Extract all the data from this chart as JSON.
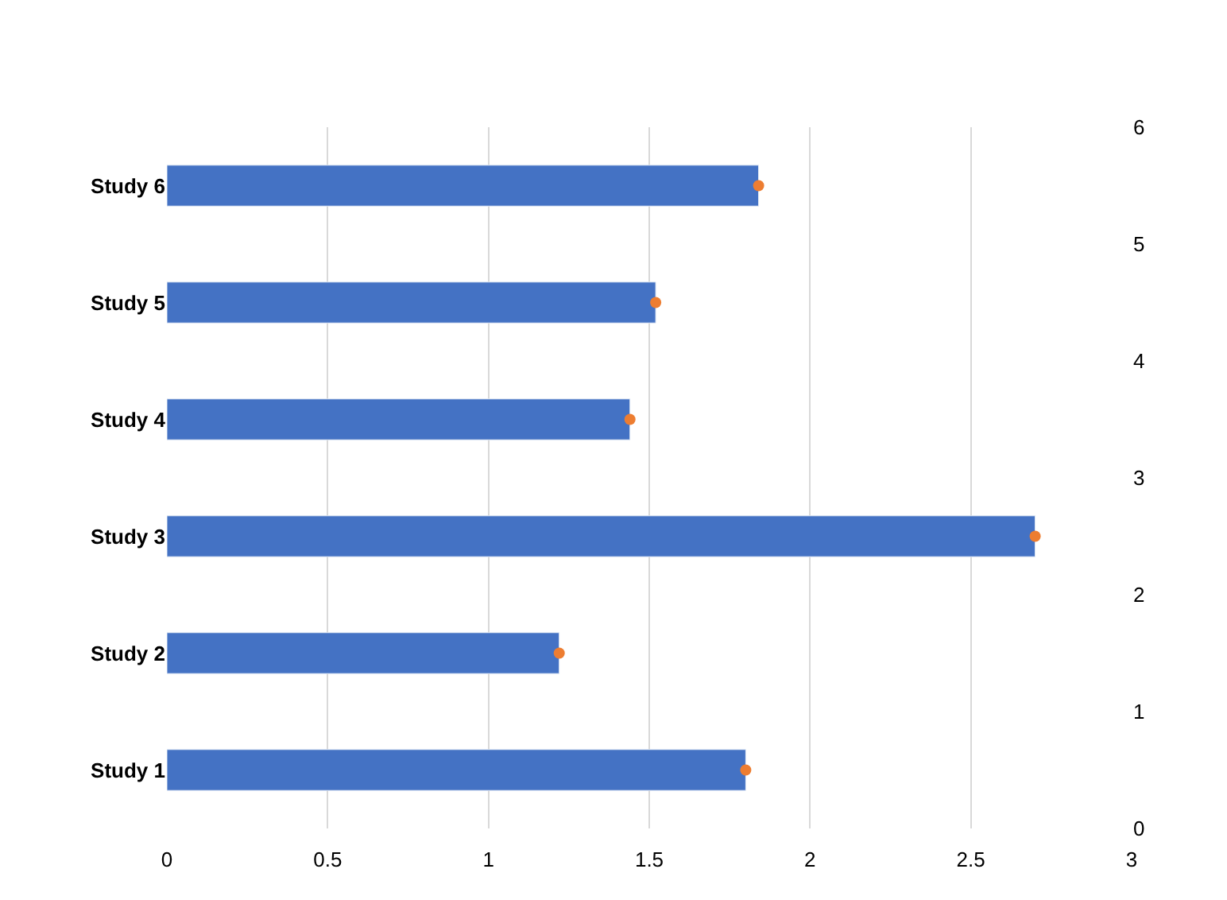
{
  "chart_data": {
    "type": "bar",
    "orientation": "horizontal",
    "categories": [
      "Study 6",
      "Study 5",
      "Study 4",
      "Study 3",
      "Study 2",
      "Study 1"
    ],
    "series": [
      {
        "color": "#4472c4",
        "values": [
          1.84,
          1.52,
          1.44,
          2.7,
          1.22,
          1.8
        ]
      },
      {
        "type": "scatter",
        "color": "#ed7d31",
        "values": [
          1.84,
          1.52,
          1.44,
          2.7,
          1.22,
          1.8
        ]
      }
    ],
    "xlim": [
      0,
      3
    ],
    "xticks": [
      0,
      0.5,
      1,
      1.5,
      2,
      2.5,
      3
    ],
    "y2lim": [
      0,
      6
    ],
    "y2ticks": [
      0,
      1,
      2,
      3,
      4,
      5,
      6
    ],
    "grid": "x",
    "marker": "circle"
  }
}
